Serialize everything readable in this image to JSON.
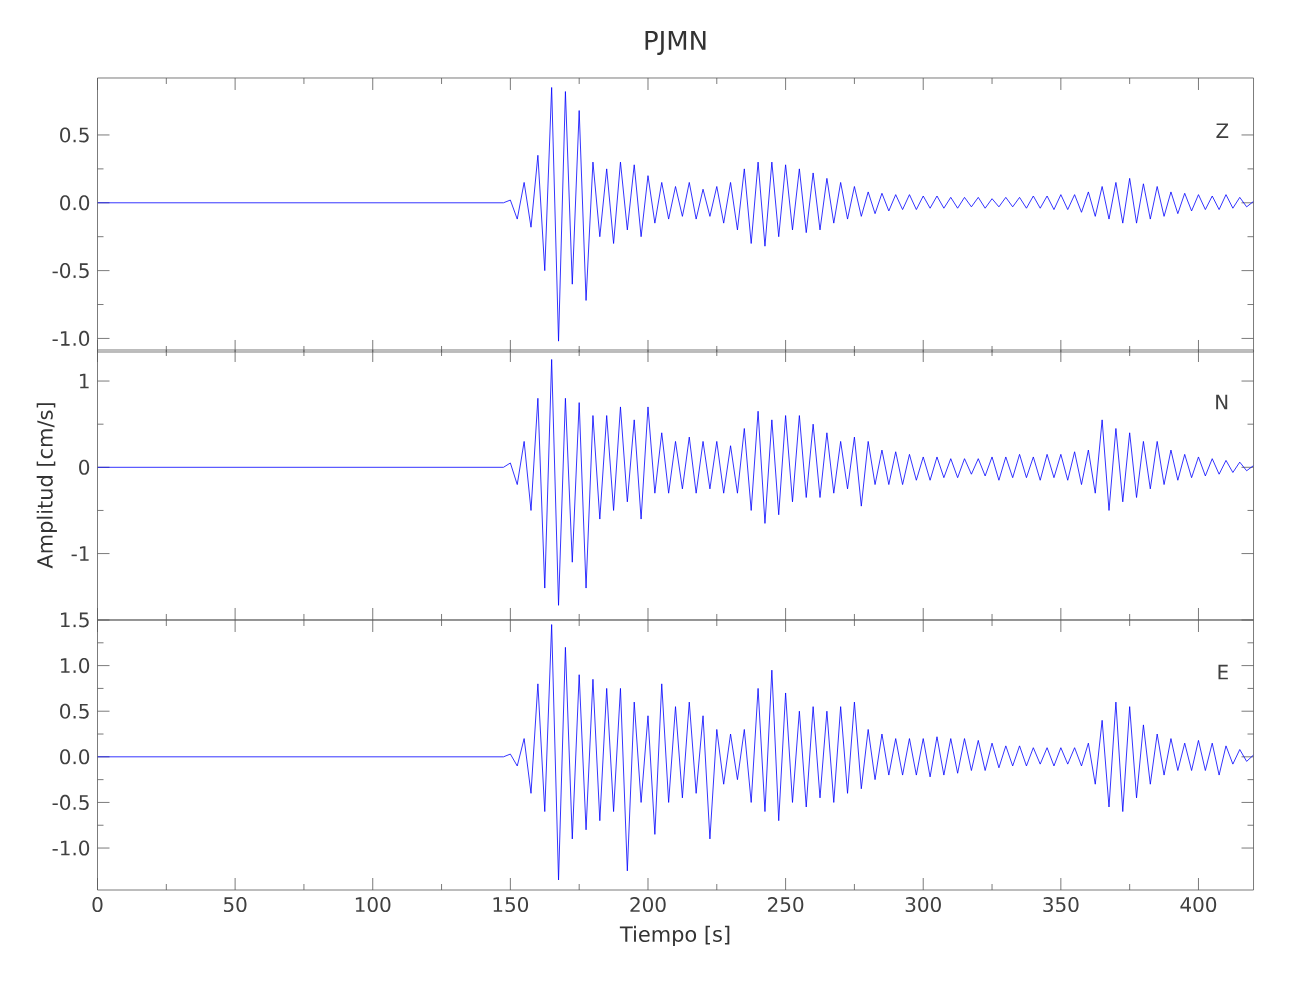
{
  "chart_data": [
    {
      "type": "line",
      "title": "PJMN",
      "annotations": [
        "Z"
      ],
      "xlim": [
        0,
        420
      ],
      "xticks": [
        0,
        50,
        100,
        150,
        200,
        250,
        300,
        350,
        400
      ],
      "ylim": [
        -1.1,
        0.92
      ],
      "yticks": [
        0.5,
        {
          "value": 0,
          "label": "0.0"
        },
        -0.5,
        {
          "value": -1,
          "label": "-1.0"
        }
      ],
      "tick_labels": "y",
      "x": [
        0,
        147.5,
        150,
        152.5,
        155,
        157.5,
        160,
        162.5,
        165,
        167.5,
        170,
        172.5,
        175,
        177.5,
        180,
        182.5,
        185,
        187.5,
        190,
        192.5,
        195,
        197.5,
        200,
        202.5,
        205,
        207.5,
        210,
        212.5,
        215,
        217.5,
        220,
        222.5,
        225,
        227.5,
        230,
        232.5,
        235,
        237.5,
        240,
        242.5,
        245,
        247.5,
        250,
        252.5,
        255,
        257.5,
        260,
        262.5,
        265,
        267.5,
        270,
        272.5,
        275,
        277.5,
        280,
        282.5,
        285,
        287.5,
        290,
        292.5,
        295,
        297.5,
        300,
        302.5,
        305,
        307.5,
        310,
        312.5,
        315,
        317.5,
        320,
        322.5,
        325,
        327.5,
        330,
        332.5,
        335,
        337.5,
        340,
        342.5,
        345,
        347.5,
        350,
        352.5,
        355,
        357.5,
        360,
        362.5,
        365,
        367.5,
        370,
        372.5,
        375,
        377.5,
        380,
        382.5,
        385,
        387.5,
        390,
        392.5,
        395,
        397.5,
        400,
        402.5,
        405,
        407.5,
        410,
        412.5,
        415,
        417.5,
        420
      ],
      "series": [
        {
          "color": "#0000ff",
          "values": [
            0,
            0,
            0.02,
            -0.12,
            0.15,
            -0.18,
            0.35,
            -0.5,
            0.85,
            -1.02,
            0.82,
            -0.6,
            0.68,
            -0.72,
            0.3,
            -0.25,
            0.25,
            -0.3,
            0.3,
            -0.2,
            0.28,
            -0.25,
            0.2,
            -0.15,
            0.15,
            -0.12,
            0.12,
            -0.1,
            0.15,
            -0.12,
            0.1,
            -0.1,
            0.12,
            -0.15,
            0.15,
            -0.2,
            0.25,
            -0.3,
            0.3,
            -0.32,
            0.3,
            -0.25,
            0.28,
            -0.2,
            0.25,
            -0.22,
            0.22,
            -0.2,
            0.18,
            -0.15,
            0.15,
            -0.12,
            0.12,
            -0.1,
            0.08,
            -0.08,
            0.07,
            -0.06,
            0.06,
            -0.05,
            0.06,
            -0.05,
            0.05,
            -0.04,
            0.05,
            -0.04,
            0.04,
            -0.04,
            0.04,
            -0.03,
            0.04,
            -0.04,
            0.03,
            -0.03,
            0.04,
            -0.03,
            0.04,
            -0.04,
            0.05,
            -0.04,
            0.05,
            -0.05,
            0.06,
            -0.05,
            0.06,
            -0.07,
            0.08,
            -0.1,
            0.12,
            -0.12,
            0.15,
            -0.15,
            0.18,
            -0.15,
            0.14,
            -0.12,
            0.12,
            -0.1,
            0.08,
            -0.08,
            0.07,
            -0.06,
            0.06,
            -0.05,
            0.05,
            -0.05,
            0.06,
            -0.04,
            0.04,
            -0.03,
            0.01
          ]
        }
      ]
    },
    {
      "type": "line",
      "ylabel": "Amplitud [cm/s]",
      "annotations": [
        "N"
      ],
      "xlim": [
        0,
        420
      ],
      "xticks": [
        0,
        50,
        100,
        150,
        200,
        250,
        300,
        350,
        400
      ],
      "ylim": [
        -1.77,
        1.36
      ],
      "yticks": [
        1,
        0,
        -1
      ],
      "tick_labels": "y",
      "x": [
        0,
        147.5,
        150,
        152.5,
        155,
        157.5,
        160,
        162.5,
        165,
        167.5,
        170,
        172.5,
        175,
        177.5,
        180,
        182.5,
        185,
        187.5,
        190,
        192.5,
        195,
        197.5,
        200,
        202.5,
        205,
        207.5,
        210,
        212.5,
        215,
        217.5,
        220,
        222.5,
        225,
        227.5,
        230,
        232.5,
        235,
        237.5,
        240,
        242.5,
        245,
        247.5,
        250,
        252.5,
        255,
        257.5,
        260,
        262.5,
        265,
        267.5,
        270,
        272.5,
        275,
        277.5,
        280,
        282.5,
        285,
        287.5,
        290,
        292.5,
        295,
        297.5,
        300,
        302.5,
        305,
        307.5,
        310,
        312.5,
        315,
        317.5,
        320,
        322.5,
        325,
        327.5,
        330,
        332.5,
        335,
        337.5,
        340,
        342.5,
        345,
        347.5,
        350,
        352.5,
        355,
        357.5,
        360,
        362.5,
        365,
        367.5,
        370,
        372.5,
        375,
        377.5,
        380,
        382.5,
        385,
        387.5,
        390,
        392.5,
        395,
        397.5,
        400,
        402.5,
        405,
        407.5,
        410,
        412.5,
        415,
        417.5,
        420
      ],
      "series": [
        {
          "color": "#0000ff",
          "values": [
            0,
            0,
            0.05,
            -0.2,
            0.3,
            -0.5,
            0.8,
            -1.4,
            1.25,
            -1.6,
            0.8,
            -1.1,
            0.75,
            -1.4,
            0.6,
            -0.6,
            0.6,
            -0.5,
            0.7,
            -0.4,
            0.55,
            -0.6,
            0.7,
            -0.3,
            0.4,
            -0.3,
            0.3,
            -0.25,
            0.35,
            -0.3,
            0.3,
            -0.25,
            0.3,
            -0.3,
            0.25,
            -0.3,
            0.45,
            -0.5,
            0.65,
            -0.65,
            0.55,
            -0.55,
            0.6,
            -0.4,
            0.6,
            -0.35,
            0.5,
            -0.35,
            0.4,
            -0.3,
            0.3,
            -0.25,
            0.35,
            -0.45,
            0.3,
            -0.2,
            0.2,
            -0.2,
            0.18,
            -0.2,
            0.15,
            -0.15,
            0.12,
            -0.15,
            0.12,
            -0.12,
            0.1,
            -0.12,
            0.1,
            -0.08,
            0.1,
            -0.1,
            0.12,
            -0.15,
            0.12,
            -0.12,
            0.15,
            -0.12,
            0.12,
            -0.15,
            0.15,
            -0.12,
            0.15,
            -0.15,
            0.18,
            -0.2,
            0.2,
            -0.3,
            0.55,
            -0.5,
            0.45,
            -0.4,
            0.4,
            -0.35,
            0.3,
            -0.25,
            0.3,
            -0.2,
            0.2,
            -0.15,
            0.15,
            -0.12,
            0.12,
            -0.1,
            0.1,
            -0.08,
            0.08,
            -0.06,
            0.06,
            -0.04,
            0.02
          ]
        }
      ]
    },
    {
      "type": "line",
      "xlabel": "Tiempo [s]",
      "annotations": [
        "E"
      ],
      "xlim": [
        0,
        420
      ],
      "xticks": [
        0,
        50,
        100,
        150,
        200,
        250,
        300,
        350,
        400
      ],
      "ylim": [
        -1.46,
        1.5
      ],
      "yticks": [
        1.5,
        {
          "value": 1,
          "label": "1.0"
        },
        0.5,
        {
          "value": 0,
          "label": "0.0"
        },
        -0.5,
        {
          "value": -1,
          "label": "-1.0"
        }
      ],
      "x": [
        0,
        147.5,
        150,
        152.5,
        155,
        157.5,
        160,
        162.5,
        165,
        167.5,
        170,
        172.5,
        175,
        177.5,
        180,
        182.5,
        185,
        187.5,
        190,
        192.5,
        195,
        197.5,
        200,
        202.5,
        205,
        207.5,
        210,
        212.5,
        215,
        217.5,
        220,
        222.5,
        225,
        227.5,
        230,
        232.5,
        235,
        237.5,
        240,
        242.5,
        245,
        247.5,
        250,
        252.5,
        255,
        257.5,
        260,
        262.5,
        265,
        267.5,
        270,
        272.5,
        275,
        277.5,
        280,
        282.5,
        285,
        287.5,
        290,
        292.5,
        295,
        297.5,
        300,
        302.5,
        305,
        307.5,
        310,
        312.5,
        315,
        317.5,
        320,
        322.5,
        325,
        327.5,
        330,
        332.5,
        335,
        337.5,
        340,
        342.5,
        345,
        347.5,
        350,
        352.5,
        355,
        357.5,
        360,
        362.5,
        365,
        367.5,
        370,
        372.5,
        375,
        377.5,
        380,
        382.5,
        385,
        387.5,
        390,
        392.5,
        395,
        397.5,
        400,
        402.5,
        405,
        407.5,
        410,
        412.5,
        415,
        417.5,
        420
      ],
      "series": [
        {
          "color": "#0000ff",
          "values": [
            0,
            0,
            0.03,
            -0.1,
            0.2,
            -0.4,
            0.8,
            -0.6,
            1.45,
            -1.35,
            1.2,
            -0.9,
            0.9,
            -0.8,
            0.85,
            -0.7,
            0.75,
            -0.6,
            0.75,
            -1.25,
            0.6,
            -0.5,
            0.45,
            -0.85,
            0.8,
            -0.5,
            0.55,
            -0.45,
            0.6,
            -0.4,
            0.45,
            -0.9,
            0.3,
            -0.3,
            0.25,
            -0.25,
            0.3,
            -0.5,
            0.75,
            -0.6,
            0.95,
            -0.7,
            0.7,
            -0.5,
            0.5,
            -0.55,
            0.55,
            -0.45,
            0.5,
            -0.5,
            0.55,
            -0.4,
            0.6,
            -0.35,
            0.3,
            -0.25,
            0.25,
            -0.2,
            0.2,
            -0.2,
            0.2,
            -0.2,
            0.2,
            -0.22,
            0.22,
            -0.2,
            0.2,
            -0.18,
            0.2,
            -0.15,
            0.18,
            -0.15,
            0.15,
            -0.12,
            0.12,
            -0.1,
            0.12,
            -0.1,
            0.1,
            -0.08,
            0.1,
            -0.1,
            0.1,
            -0.08,
            0.1,
            -0.1,
            0.15,
            -0.3,
            0.4,
            -0.55,
            0.6,
            -0.6,
            0.55,
            -0.45,
            0.35,
            -0.3,
            0.25,
            -0.2,
            0.2,
            -0.15,
            0.15,
            -0.15,
            0.18,
            -0.15,
            0.15,
            -0.2,
            0.12,
            -0.08,
            0.08,
            -0.05,
            0.02
          ]
        }
      ]
    }
  ]
}
